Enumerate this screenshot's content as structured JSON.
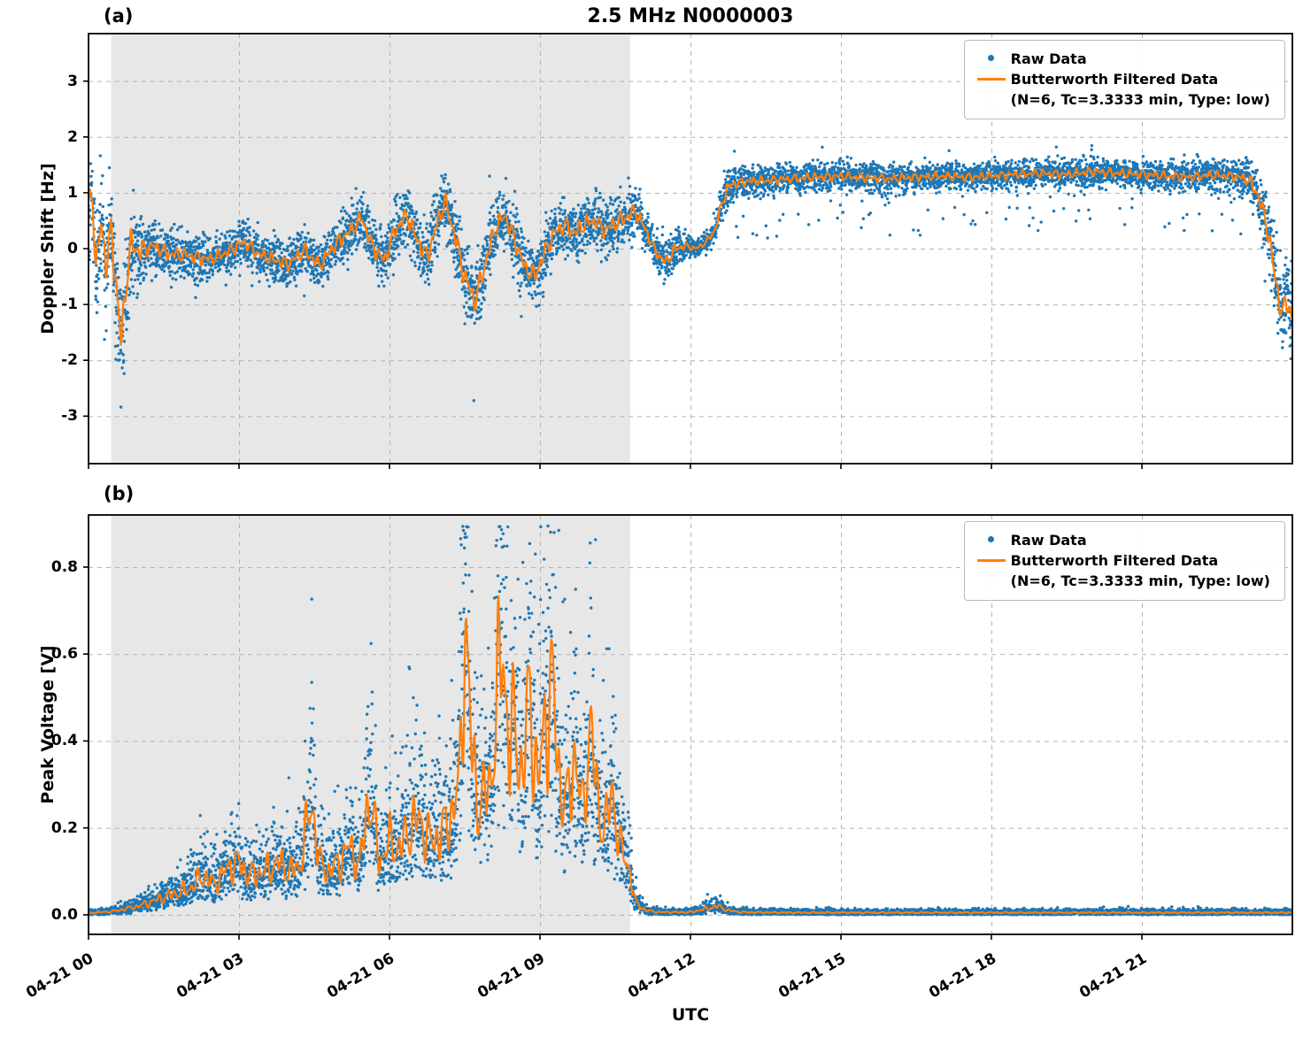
{
  "title": "2.5 MHz N0000003",
  "xlabel": "UTC",
  "colors": {
    "raw": "#1f77b4",
    "filtered": "#ff7f0e",
    "shade": "#e7e7e7",
    "grid": "#b3b3b3",
    "spine": "#000000"
  },
  "legend": {
    "raw_label": "Raw Data",
    "filtered_label": "Butterworth Filtered Data",
    "filtered_sublabel": "(N=6, Tc=3.3333 min, Type: low)"
  },
  "shade": {
    "t0": 0.45,
    "t1": 10.8
  },
  "x_ticks": {
    "positions": [
      0,
      3,
      6,
      9,
      12,
      15,
      18,
      21
    ],
    "labels": [
      "04-21 00",
      "04-21 03",
      "04-21 06",
      "04-21 09",
      "04-21 12",
      "04-21 15",
      "04-21 18",
      "04-21 21"
    ]
  },
  "seed": 1337,
  "chart_data": [
    {
      "type": "scatter",
      "panel_label": "(a)",
      "ylabel": "Doppler Shift [Hz]",
      "xlim": [
        0,
        24
      ],
      "ylim": [
        -3.85,
        3.85
      ],
      "yticks": [
        -3,
        -2,
        -1,
        0,
        1,
        2,
        3
      ],
      "ytick_labels": [
        "-3",
        "-2",
        "-1",
        "0",
        "1",
        "2",
        "3"
      ],
      "grid": true,
      "legend_position": "upper right",
      "raw_points": 7200,
      "filtered_keypoints": {
        "t": [
          0,
          0.08,
          0.15,
          0.25,
          0.35,
          0.45,
          0.55,
          0.65,
          0.75,
          0.85,
          1.0,
          1.3,
          1.6,
          2.0,
          2.4,
          2.8,
          3.1,
          3.4,
          3.7,
          4.0,
          4.3,
          4.6,
          4.9,
          5.2,
          5.45,
          5.65,
          5.9,
          6.1,
          6.35,
          6.55,
          6.75,
          6.95,
          7.1,
          7.3,
          7.5,
          7.7,
          7.9,
          8.1,
          8.3,
          8.5,
          8.7,
          8.9,
          9.1,
          9.3,
          9.5,
          9.7,
          9.9,
          10.1,
          10.3,
          10.5,
          10.7,
          10.9,
          11.1,
          11.3,
          11.5,
          11.7,
          11.9,
          12.1,
          12.3,
          12.5,
          12.65,
          12.8,
          13.1,
          13.5,
          14,
          14.5,
          15,
          15.5,
          16,
          16.5,
          17,
          17.5,
          18,
          18.5,
          19,
          19.5,
          20,
          20.5,
          21,
          21.5,
          22,
          22.4,
          22.8,
          23.1,
          23.3,
          23.5,
          23.65,
          23.8,
          23.9,
          24
        ],
        "y": [
          0.7,
          1.0,
          -0.4,
          0.5,
          -0.3,
          0.3,
          -0.6,
          -1.7,
          -0.6,
          0.1,
          -0.05,
          0.05,
          -0.1,
          -0.12,
          -0.2,
          -0.05,
          0.12,
          -0.1,
          -0.2,
          -0.28,
          -0.02,
          -0.3,
          0.05,
          0.3,
          0.55,
          0.05,
          -0.22,
          0.3,
          0.6,
          0.15,
          -0.15,
          0.45,
          0.85,
          0.25,
          -0.5,
          -0.95,
          -0.3,
          0.35,
          0.6,
          0.15,
          -0.35,
          -0.5,
          -0.05,
          0.3,
          0.42,
          0.28,
          0.45,
          0.5,
          0.32,
          0.45,
          0.55,
          0.68,
          0.35,
          -0.05,
          -0.25,
          0.0,
          0.05,
          0.0,
          0.1,
          0.35,
          0.9,
          1.15,
          1.2,
          1.22,
          1.25,
          1.28,
          1.3,
          1.27,
          1.25,
          1.28,
          1.3,
          1.28,
          1.3,
          1.33,
          1.35,
          1.33,
          1.38,
          1.35,
          1.33,
          1.3,
          1.28,
          1.32,
          1.3,
          1.25,
          1.0,
          0.4,
          -0.5,
          -1.2,
          -0.9,
          -1.3
        ]
      },
      "noise": {
        "model": "additive",
        "spread_t": [
          0,
          0.8,
          1.2,
          3,
          5,
          6.5,
          7.5,
          8.5,
          10,
          10.9,
          11.3,
          11.6,
          12,
          12.45,
          12.7,
          13,
          14,
          20,
          22.8,
          23.3,
          23.6,
          24
        ],
        "spread": [
          1.1,
          1.1,
          0.5,
          0.42,
          0.5,
          0.6,
          0.75,
          0.6,
          0.55,
          0.5,
          0.35,
          0.45,
          0.18,
          0.2,
          0.45,
          0.3,
          0.28,
          0.28,
          0.3,
          0.5,
          0.8,
          0.9
        ],
        "outlier_prob": 0.012,
        "outlier_scale": 2.6,
        "low_band": {
          "t0": 12.9,
          "t1": 23.0,
          "prob": 0.03,
          "min": 0.2,
          "max": 1.05
        }
      }
    },
    {
      "type": "scatter",
      "panel_label": "(b)",
      "ylabel": "Peak Voltage [V]",
      "xlim": [
        0,
        24
      ],
      "ylim": [
        -0.045,
        0.92
      ],
      "yticks": [
        0.0,
        0.2,
        0.4,
        0.6,
        0.8
      ],
      "ytick_labels": [
        "0.0",
        "0.2",
        "0.4",
        "0.6",
        "0.8"
      ],
      "grid": true,
      "legend_position": "upper right",
      "raw_points": 7200,
      "filtered_keypoints": {
        "t": [
          0,
          0.5,
          1.0,
          1.5,
          2.0,
          2.3,
          2.5,
          2.8,
          3.0,
          3.2,
          3.5,
          3.8,
          4.0,
          4.2,
          4.45,
          4.6,
          4.8,
          5.0,
          5.2,
          5.4,
          5.6,
          5.8,
          6.0,
          6.2,
          6.4,
          6.6,
          6.8,
          7.0,
          7.2,
          7.4,
          7.5,
          7.65,
          7.8,
          8.0,
          8.1,
          8.25,
          8.4,
          8.5,
          8.65,
          8.8,
          8.95,
          9.1,
          9.25,
          9.4,
          9.55,
          9.7,
          9.85,
          10.0,
          10.15,
          10.3,
          10.45,
          10.6,
          10.75,
          10.9,
          11.1,
          11.4,
          12.0,
          12.35,
          12.55,
          12.75,
          13.0,
          14,
          16,
          18,
          20,
          22,
          24
        ],
        "y": [
          0.004,
          0.008,
          0.02,
          0.04,
          0.06,
          0.09,
          0.07,
          0.11,
          0.12,
          0.09,
          0.1,
          0.12,
          0.1,
          0.11,
          0.26,
          0.12,
          0.1,
          0.12,
          0.16,
          0.11,
          0.28,
          0.12,
          0.17,
          0.15,
          0.2,
          0.22,
          0.17,
          0.18,
          0.22,
          0.3,
          0.7,
          0.35,
          0.25,
          0.3,
          0.42,
          0.64,
          0.35,
          0.46,
          0.3,
          0.53,
          0.28,
          0.45,
          0.52,
          0.3,
          0.25,
          0.38,
          0.22,
          0.45,
          0.25,
          0.2,
          0.28,
          0.15,
          0.12,
          0.03,
          0.01,
          0.006,
          0.006,
          0.015,
          0.02,
          0.01,
          0.006,
          0.005,
          0.005,
          0.005,
          0.005,
          0.005,
          0.005
        ]
      },
      "noise": {
        "model": "multiplicative",
        "sigma": 0.42,
        "base": 0.012,
        "cap": 0.895
      }
    }
  ]
}
